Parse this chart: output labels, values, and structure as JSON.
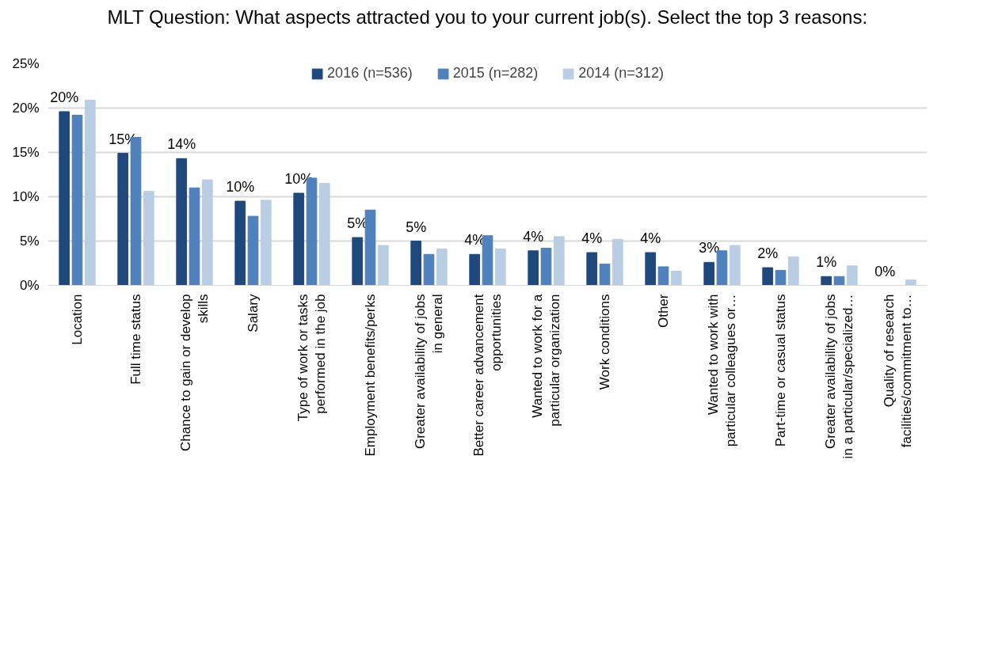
{
  "chart_data": {
    "type": "bar",
    "title": "MLT Question: What aspects attracted you to your current job(s). Select the top 3 reasons:",
    "categories": [
      "Location",
      "Full time status",
      "Chance to gain or develop\nskills",
      "Salary",
      "Type of work or tasks\nperformed in the job",
      "Employment benefits/perks",
      "Greater availability of jobs\nin general",
      "Better career advancement\nopportunities",
      "Wanted to work for a\nparticular organization",
      "Work conditions",
      "Other",
      "Wanted to work with\nparticular colleagues or…",
      "Part-time or casual status",
      "Greater availability of jobs\nin a particular/specialized…",
      "Quality of research\nfacilities/commitment to…"
    ],
    "series": [
      {
        "name": "2016 (n=536)",
        "color": "#1f497d",
        "values": [
          19.6,
          14.9,
          14.3,
          9.5,
          10.4,
          5.4,
          5.0,
          3.5,
          3.9,
          3.7,
          3.7,
          2.6,
          2.0,
          1.0,
          0
        ],
        "value_labels": [
          "20%",
          "15%",
          "14%",
          "10%",
          "10%",
          "5%",
          "5%",
          "4%",
          "4%",
          "4%",
          "4%",
          "3%",
          "2%",
          "1%",
          "0%"
        ]
      },
      {
        "name": "2015 (n=282)",
        "color": "#4f81bd",
        "values": [
          19.2,
          16.7,
          11.0,
          7.8,
          12.1,
          8.5,
          3.5,
          5.6,
          4.2,
          2.4,
          2.1,
          3.9,
          1.7,
          1.0,
          0
        ]
      },
      {
        "name": "2014 (n=312)",
        "color": "#b9cde5",
        "values": [
          20.9,
          10.6,
          11.9,
          9.6,
          11.5,
          4.5,
          4.1,
          4.1,
          5.5,
          5.2,
          1.6,
          4.5,
          3.2,
          2.2,
          0.6
        ]
      }
    ],
    "ylim": [
      0,
      25
    ],
    "yticks": [
      {
        "value": 0,
        "label": "0%"
      },
      {
        "value": 5,
        "label": "5%"
      },
      {
        "value": 10,
        "label": "10%"
      },
      {
        "value": 15,
        "label": "15%"
      },
      {
        "value": 20,
        "label": "20%"
      },
      {
        "value": 25,
        "label": "25%"
      }
    ],
    "grid": "y",
    "legend": "top"
  }
}
